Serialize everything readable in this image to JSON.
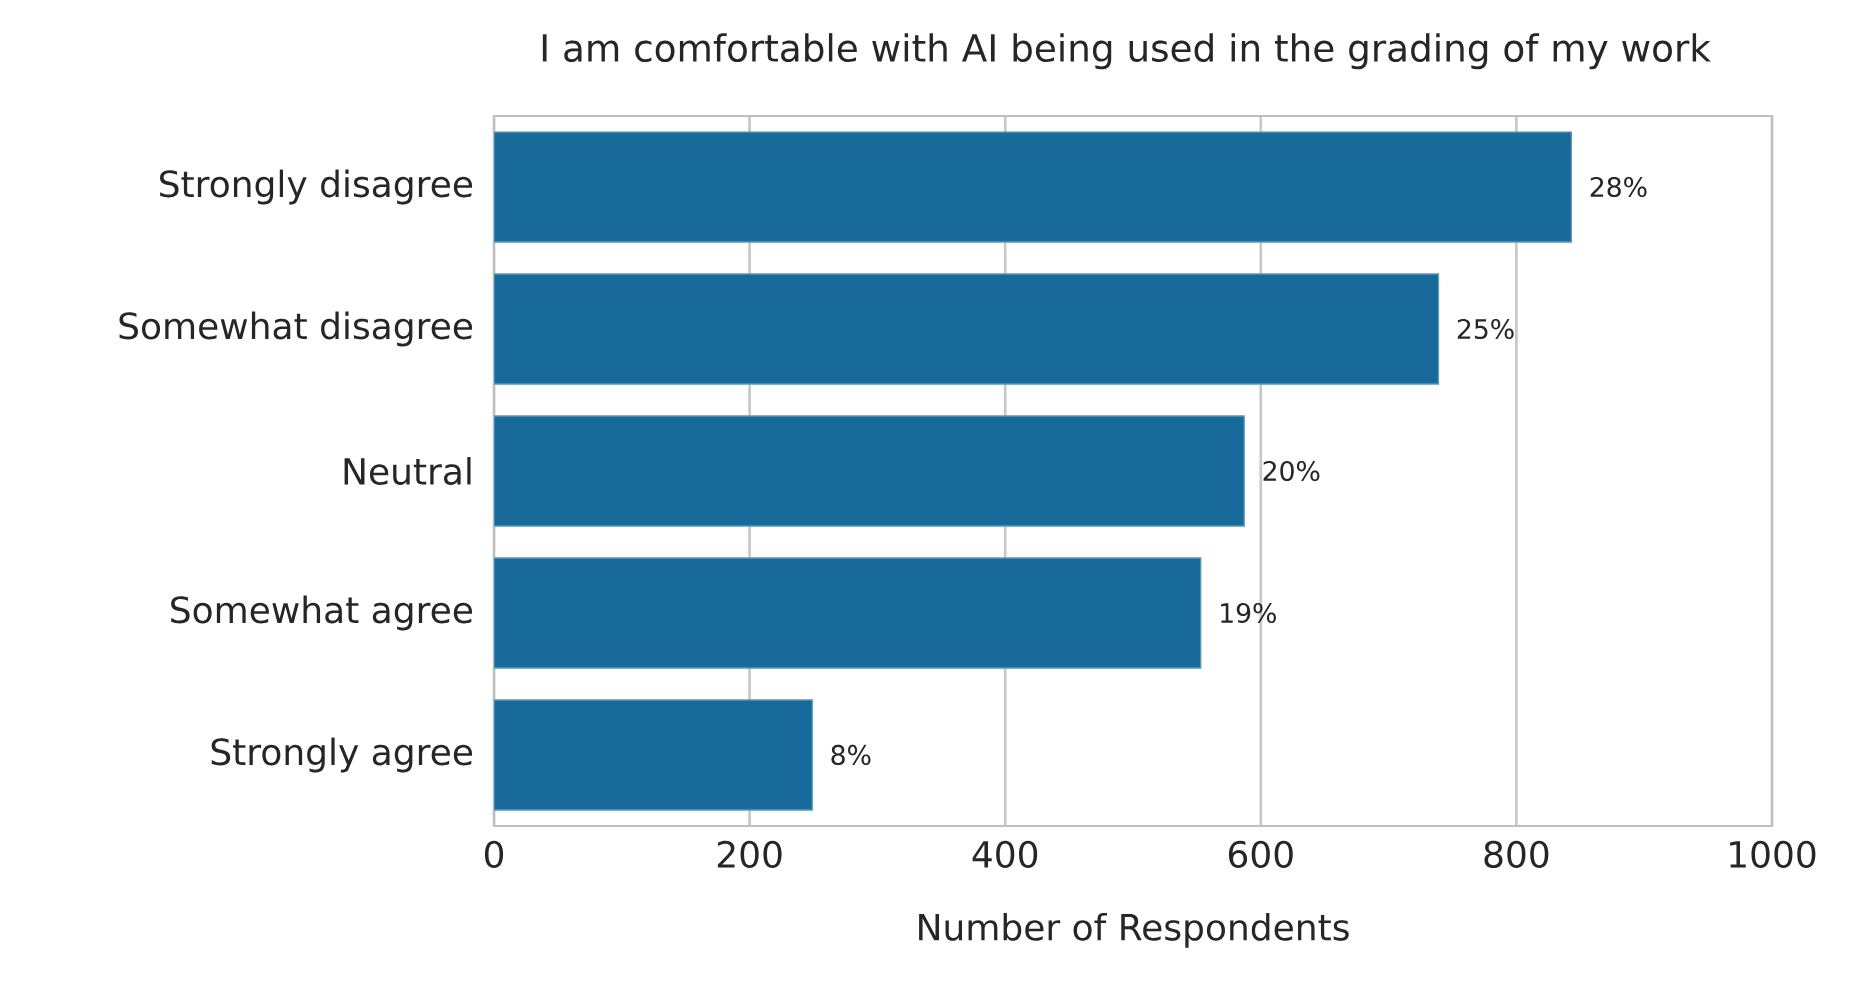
{
  "chart_data": {
    "type": "bar",
    "orientation": "horizontal",
    "title": "I am comfortable with AI being used in the grading of my work",
    "xlabel": "Number of Respondents",
    "categories": [
      "Strongly disagree",
      "Somewhat disagree",
      "Neutral",
      "Somewhat agree",
      "Strongly agree"
    ],
    "values": [
      843,
      739,
      587,
      553,
      249
    ],
    "annotations": [
      {
        "text": "28%",
        "x": 843,
        "y": "Strongly disagree"
      },
      {
        "text": "25%",
        "x": 739,
        "y": "Somewhat disagree"
      },
      {
        "text": "20%",
        "x": 587,
        "y": "Neutral"
      },
      {
        "text": "19%",
        "x": 553,
        "y": "Somewhat agree"
      },
      {
        "text": "8%",
        "x": 249,
        "y": "Strongly agree"
      }
    ],
    "color": "#176a9a",
    "xlim": [
      0,
      1000
    ],
    "xticks": [
      0,
      200,
      400,
      600,
      800,
      1000
    ],
    "grid": "x"
  }
}
